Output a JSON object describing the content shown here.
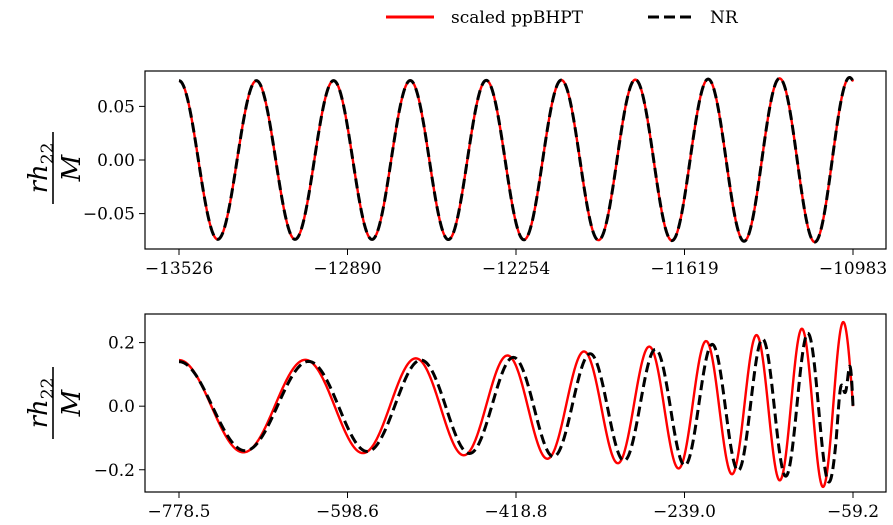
{
  "legend": {
    "entries": [
      {
        "label": "scaled ppBHPT",
        "color": "#ff0000",
        "style": "solid"
      },
      {
        "label": "NR",
        "color": "#000000",
        "style": "dashed"
      }
    ]
  },
  "chart_data": [
    {
      "type": "line",
      "ylabel": {
        "main": "rh",
        "sub": "22",
        "denominator": "M"
      },
      "xticks": [
        "−13526",
        "−12890",
        "−12254",
        "−11619",
        "−10983"
      ],
      "yticks": [
        "0.05",
        "0.00",
        "−0.05"
      ],
      "ytick_values": [
        0.05,
        0.0,
        -0.05
      ],
      "xlim": [
        -13526,
        -10983
      ],
      "ylim": [
        -0.083,
        0.083
      ],
      "grid": false,
      "series": [
        {
          "name": "scaled ppBHPT",
          "color": "#ff0000",
          "style": "solid",
          "waveform": {
            "t0": -13526,
            "cycles": 9.05,
            "amp_start": 0.074,
            "amp_end": 0.077,
            "chirp": 0.04,
            "phase_deg": 90,
            "end_deviation": 0
          }
        },
        {
          "name": "NR",
          "color": "#000000",
          "style": "dashed",
          "waveform": {
            "t0": -13526,
            "cycles": 9.05,
            "amp_start": 0.074,
            "amp_end": 0.077,
            "chirp": 0.04,
            "phase_deg": 90,
            "end_deviation": 0
          }
        }
      ]
    },
    {
      "type": "line",
      "ylabel": {
        "main": "rh",
        "sub": "22",
        "denominator": "M"
      },
      "xticks": [
        "−778.5",
        "−598.6",
        "−418.8",
        "−239.0",
        "−59.2"
      ],
      "yticks": [
        "0.2",
        "0.0",
        "−0.2"
      ],
      "ytick_values": [
        0.2,
        0.0,
        -0.2
      ],
      "xlim": [
        -778.5,
        -59.2
      ],
      "ylim": [
        -0.27,
        0.29
      ],
      "grid": false,
      "series": [
        {
          "name": "scaled ppBHPT",
          "color": "#ff0000",
          "style": "solid",
          "waveform": {
            "t0": -778.5,
            "cycles": 9.25,
            "amp_start": 0.145,
            "amp_end": 0.27,
            "chirp": 0.78,
            "phase_deg": 90,
            "end_deviation": 0
          }
        },
        {
          "name": "NR",
          "color": "#000000",
          "style": "dashed",
          "waveform": {
            "t0": -778.5,
            "cycles": 9.1,
            "amp_start": 0.14,
            "amp_end": 0.25,
            "chirp": 0.8,
            "phase_deg": 90,
            "end_deviation": 1
          }
        }
      ]
    }
  ]
}
